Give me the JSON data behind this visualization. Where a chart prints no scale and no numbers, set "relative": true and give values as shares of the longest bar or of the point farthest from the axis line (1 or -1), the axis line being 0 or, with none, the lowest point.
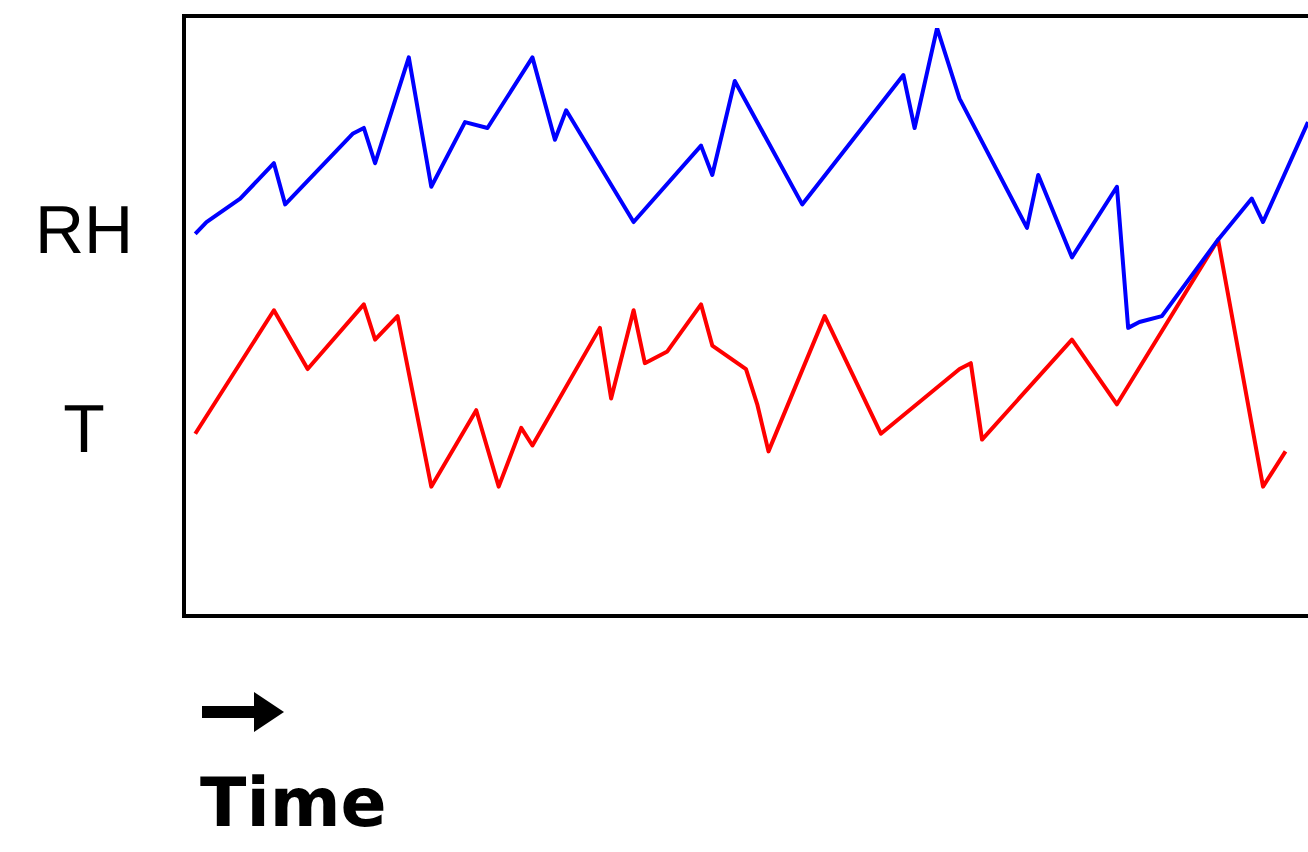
{
  "chart_data": {
    "type": "line",
    "xlabel": "Time",
    "relative": true,
    "marker": "none",
    "categories": [
      null,
      null,
      null,
      null,
      null,
      null,
      null,
      null,
      null,
      null,
      null,
      null,
      null,
      null,
      null,
      null,
      null,
      null,
      null,
      null,
      null,
      null,
      null,
      null,
      null,
      null,
      null,
      null,
      null,
      null,
      null,
      null,
      null,
      null,
      null,
      null,
      null,
      null,
      null,
      null,
      null,
      null,
      null,
      null,
      null,
      null,
      null,
      null,
      null,
      null,
      null,
      null,
      null,
      null,
      null,
      null,
      null,
      null,
      null,
      null,
      null,
      null,
      null,
      null,
      null,
      null,
      null,
      null,
      null,
      null,
      null,
      null,
      null,
      null,
      null,
      null,
      null,
      null,
      null,
      null,
      null,
      null,
      null,
      null,
      null,
      null,
      null,
      null,
      null,
      null,
      null,
      null,
      null,
      null,
      null,
      null,
      null,
      null,
      null,
      null,
      null
    ],
    "series": [
      {
        "name": "RH",
        "color": "#0000ff",
        "values": [
          null,
          0.65,
          0.67,
          null,
          null,
          0.71,
          null,
          null,
          0.77,
          0.7,
          null,
          null,
          null,
          null,
          null,
          0.82,
          0.83,
          0.77,
          null,
          null,
          0.95,
          null,
          0.73,
          null,
          null,
          0.84,
          null,
          0.83,
          null,
          null,
          null,
          0.95,
          null,
          0.81,
          0.86,
          null,
          null,
          null,
          null,
          null,
          0.67,
          null,
          null,
          null,
          null,
          null,
          0.8,
          0.75,
          null,
          0.91,
          null,
          null,
          null,
          null,
          null,
          0.7,
          null,
          null,
          null,
          null,
          null,
          null,
          null,
          null,
          0.92,
          0.83,
          null,
          1,
          null,
          0.88,
          null,
          null,
          null,
          null,
          null,
          0.66,
          0.75,
          null,
          null,
          0.61,
          null,
          null,
          null,
          0.73,
          0.49,
          0.5,
          null,
          0.51,
          null,
          null,
          null,
          null,
          0.64,
          null,
          null,
          0.71,
          0.67,
          null,
          null,
          null,
          0.84
        ]
      },
      {
        "name": "T",
        "color": "#ff0000",
        "values": [
          null,
          0.31,
          null,
          null,
          null,
          null,
          null,
          null,
          0.52,
          null,
          null,
          0.42,
          null,
          null,
          null,
          null,
          0.53,
          0.47,
          null,
          0.51,
          null,
          null,
          0.22,
          null,
          null,
          null,
          0.35,
          null,
          0.22,
          null,
          0.32,
          0.29,
          null,
          null,
          null,
          null,
          null,
          0.49,
          0.37,
          null,
          0.52,
          0.43,
          null,
          0.45,
          null,
          null,
          0.53,
          0.46,
          null,
          null,
          0.42,
          0.36,
          0.28,
          null,
          null,
          null,
          null,
          0.51,
          null,
          null,
          null,
          null,
          0.31,
          null,
          null,
          null,
          null,
          null,
          null,
          0.42,
          0.43,
          0.3,
          null,
          null,
          null,
          null,
          null,
          null,
          null,
          0.47,
          null,
          null,
          null,
          0.36,
          null,
          null,
          null,
          null,
          null,
          null,
          null,
          null,
          0.64,
          null,
          null,
          null,
          0.22,
          null,
          0.28,
          null,
          null
        ]
      }
    ]
  }
}
